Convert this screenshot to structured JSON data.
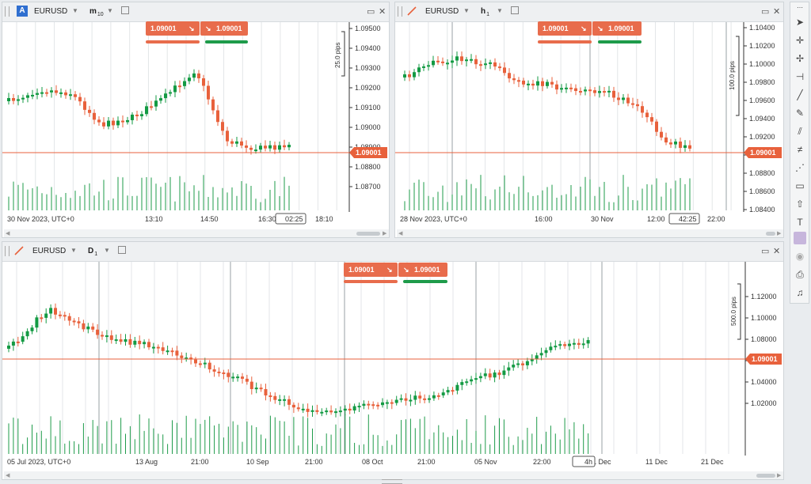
{
  "colors": {
    "up": "#139a43",
    "down": "#e8613c",
    "price_line": "#e8613c",
    "grid": "#e3e6e8",
    "volume": "#1e9b4a"
  },
  "panels": [
    {
      "symbol": "EURUSD",
      "timeframe": "m",
      "timeframe_sub": "10",
      "icon": "letter-a-chart-icon",
      "icon_letter": "A",
      "sell_price": "1.09001",
      "buy_price": "1.09001",
      "current_price": "1.09001",
      "span_label": "25.0 pips",
      "y_ticks": [
        "1.09500",
        "1.09400",
        "1.09300",
        "1.09200",
        "1.09100",
        "1.09000",
        "1.08900",
        "1.08800",
        "1.08700"
      ],
      "x_labels": [
        "30 Nov 2023, UTC+0",
        "13:10",
        "14:50",
        "16:30",
        "18:10"
      ],
      "countdown": "02:25"
    },
    {
      "symbol": "EURUSD",
      "timeframe": "h",
      "timeframe_sub": "1",
      "icon": "line-chart-icon",
      "sell_price": "1.09001",
      "buy_price": "1.09001",
      "current_price": "1.09001",
      "span_label": "100.0 pips",
      "y_ticks": [
        "1.10400",
        "1.10200",
        "1.10000",
        "1.09800",
        "1.09600",
        "1.09400",
        "1.09200",
        "1.09000",
        "1.08800",
        "1.08600",
        "1.08400"
      ],
      "x_labels": [
        "28 Nov 2023, UTC+0",
        "16:00",
        "30 Nov",
        "12:00",
        "22:00"
      ],
      "countdown": "42:25"
    },
    {
      "symbol": "EURUSD",
      "timeframe": "D",
      "timeframe_sub": "1",
      "icon": "line-chart-icon",
      "sell_price": "1.09001",
      "buy_price": "1.09001",
      "current_price": "1.09001",
      "span_label": "500.0 pips",
      "y_ticks": [
        "1.12000",
        "1.10000",
        "1.08000",
        "1.06000",
        "1.04000",
        "1.02000"
      ],
      "x_labels": [
        "05 Jul 2023, UTC+0",
        "13 Aug",
        "21:00",
        "10 Sep",
        "21:00",
        "08 Oct",
        "21:00",
        "05 Nov",
        "22:00",
        "01 Dec",
        "11 Dec",
        "21 Dec"
      ],
      "countdown": "4h"
    }
  ],
  "toolbar": {
    "tools": [
      "drag-handle-icon",
      "cursor-arrow-icon",
      "crosshair-icon",
      "plus-crosshair-icon",
      "ruler-icon",
      "line-tool-icon",
      "pen-tool-icon",
      "channel-tool-icon",
      "fib-tool-icon",
      "pattern-tool-icon",
      "rectangle-tool-icon",
      "arrow-up-tool-icon",
      "text-tool-icon",
      "color-swatch-icon",
      "settings-dot-icon",
      "camera-icon",
      "bell-icon"
    ]
  }
}
